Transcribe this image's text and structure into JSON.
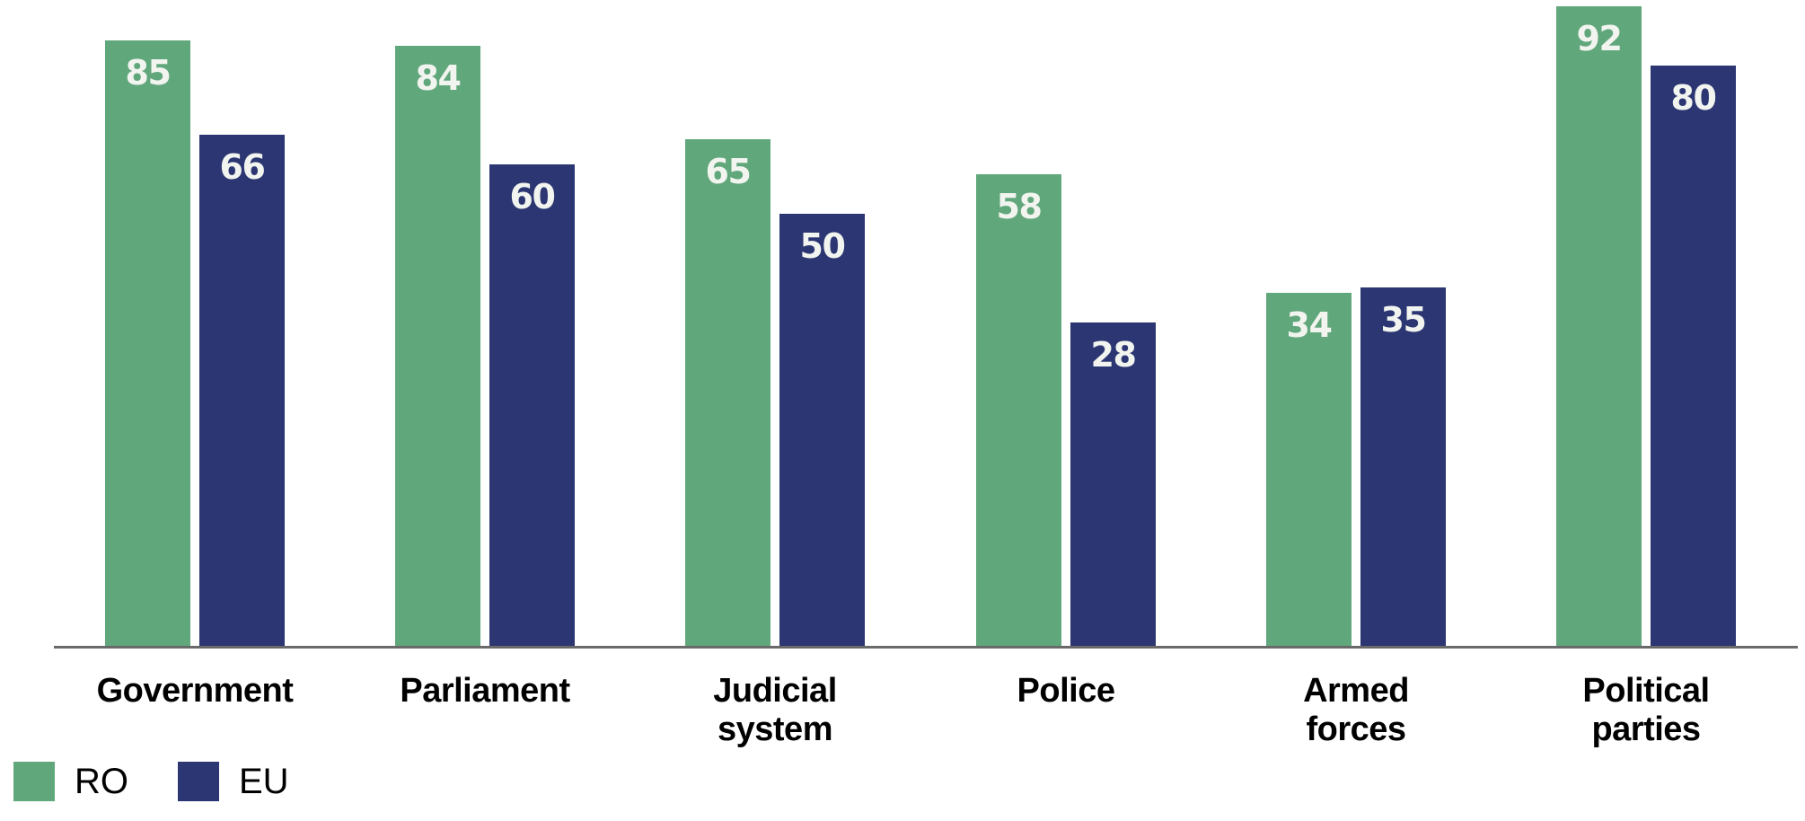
{
  "chart_data": {
    "type": "bar",
    "categories": [
      "Government",
      "Parliament",
      "Judicial system",
      "Police",
      "Armed forces",
      "Political parties"
    ],
    "series": [
      {
        "name": "RO",
        "color": "#61A77C",
        "values": [
          85,
          84,
          65,
          58,
          34,
          92
        ]
      },
      {
        "name": "EU",
        "color": "#2B3672",
        "values": [
          66,
          60,
          50,
          28,
          35,
          80
        ]
      }
    ],
    "value_labels_shown": true,
    "value_label_color": "#F2F4EF",
    "axis_line_color": "#6A6A6A",
    "label_color": "#000000",
    "background_color": "#FFFFFF",
    "grid": false,
    "y_axis_visible": false,
    "legend_position": "bottom-left",
    "visual_note": "bar lengths not proportional from zero; values labeled inside bar tops; no y-axis or gridlines shown"
  }
}
